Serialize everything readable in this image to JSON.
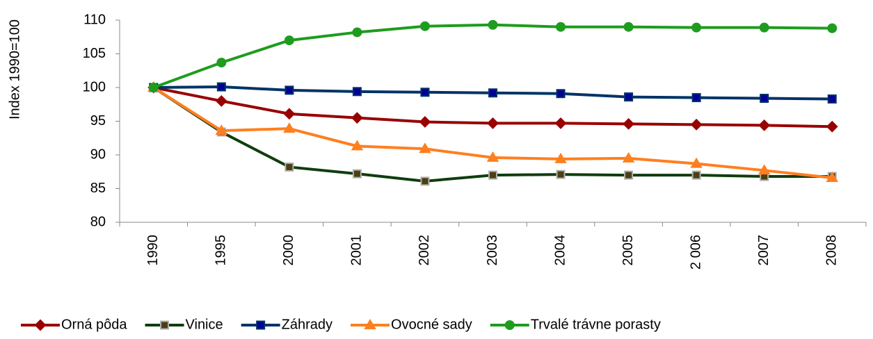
{
  "chart_data": {
    "type": "line",
    "y_label": "Index 1990=100",
    "categories": [
      "1990",
      "1995",
      "2000",
      "2001",
      "2002",
      "2003",
      "2004",
      "2005",
      "2 006",
      "2007",
      "2008"
    ],
    "series": [
      {
        "name": "Orná pôda",
        "color": "#990000",
        "marker": "diamond",
        "values": [
          100,
          98.0,
          96.1,
          95.5,
          94.9,
          94.7,
          94.7,
          94.6,
          94.5,
          94.4,
          94.2
        ]
      },
      {
        "name": "Vinice",
        "color": "#0f3d0f",
        "marker": "square",
        "marker_fill": "#4d3f12",
        "marker_stroke": "#b0b0b0",
        "values": [
          100,
          93.4,
          88.2,
          87.2,
          86.1,
          87.0,
          87.1,
          87.0,
          87.0,
          86.8,
          86.8
        ]
      },
      {
        "name": "Záhrady",
        "color": "#003366",
        "marker": "square",
        "marker_fill": "#000099",
        "values": [
          100,
          100.1,
          99.6,
          99.4,
          99.3,
          99.2,
          99.1,
          98.6,
          98.5,
          98.4,
          98.3
        ]
      },
      {
        "name": "Ovocné sady",
        "color": "#ff7f1f",
        "marker": "triangle",
        "values": [
          100,
          93.6,
          93.9,
          91.3,
          90.9,
          89.6,
          89.4,
          89.5,
          88.7,
          87.7,
          86.6
        ]
      },
      {
        "name": "Trvalé trávne porasty",
        "color": "#1e9c1e",
        "marker": "circle",
        "values": [
          100,
          103.7,
          107.0,
          108.2,
          109.1,
          109.3,
          109.0,
          109.0,
          108.9,
          108.9,
          108.8
        ]
      }
    ],
    "ylim": [
      80,
      110
    ],
    "yticks": [
      80,
      85,
      90,
      95,
      100,
      105,
      110
    ],
    "grid": false,
    "legend": "bottom"
  }
}
